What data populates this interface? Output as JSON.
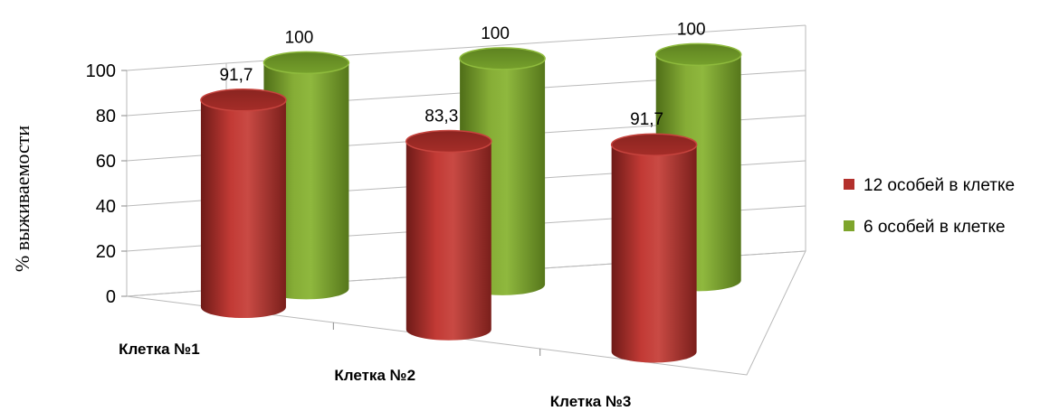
{
  "chart_data": {
    "type": "bar",
    "categories": [
      "Клетка №1",
      "Клетка №2",
      "Клетка №3"
    ],
    "series": [
      {
        "name": "12 особей в клетке",
        "values": [
          91.7,
          83.3,
          91.7
        ],
        "labels": [
          "91,7",
          "83,3",
          "91,7"
        ],
        "color": "#b3302c"
      },
      {
        "name": "6 особей в клетке",
        "values": [
          100,
          100,
          100
        ],
        "labels": [
          "100",
          "100",
          "100"
        ],
        "color": "#7ea52c"
      }
    ],
    "ylabel": "% выживаемости",
    "ylim": [
      0,
      100
    ],
    "yticks": [
      0,
      20,
      40,
      60,
      80,
      100
    ],
    "grid": true,
    "legend": "right",
    "style": "3d-cylinder"
  }
}
